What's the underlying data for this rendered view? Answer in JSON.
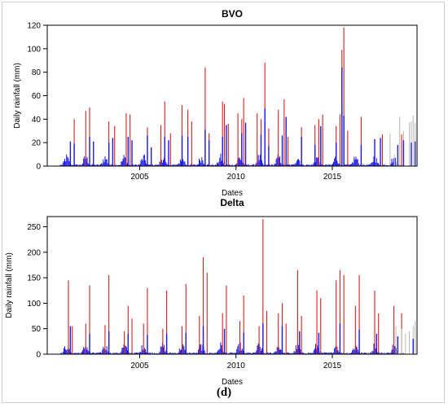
{
  "figure_label": "(d)",
  "chart_data": [
    {
      "type": "bar",
      "title": "BVO",
      "xlabel": "Dates",
      "ylabel": "Daily rainfall (mm)",
      "xlim": [
        2000.2,
        2019.4
      ],
      "ylim": [
        0,
        120
      ],
      "x_ticks": [
        2005,
        2010,
        2015
      ],
      "y_ticks": [
        0,
        20,
        40,
        60,
        80,
        100,
        120
      ],
      "grid": false,
      "series_colors": {
        "red": "#d62020",
        "gray": "#bdbdbd",
        "blue": "#1a1ae6"
      },
      "series": [
        {
          "color": "red",
          "points": [
            [
              2001.6,
              40
            ],
            [
              2002.2,
              47
            ],
            [
              2002.4,
              50
            ],
            [
              2003.4,
              38
            ],
            [
              2003.7,
              34
            ],
            [
              2004.3,
              45
            ],
            [
              2004.5,
              44
            ],
            [
              2005.4,
              33
            ],
            [
              2006.1,
              35
            ],
            [
              2006.3,
              55
            ],
            [
              2006.6,
              28
            ],
            [
              2007.2,
              52
            ],
            [
              2007.5,
              48
            ],
            [
              2007.7,
              38
            ],
            [
              2008.4,
              84
            ],
            [
              2008.6,
              28
            ],
            [
              2009.3,
              55
            ],
            [
              2009.4,
              53
            ],
            [
              2009.6,
              36
            ],
            [
              2010.1,
              45
            ],
            [
              2010.3,
              40
            ],
            [
              2010.4,
              58
            ],
            [
              2011.1,
              45
            ],
            [
              2011.3,
              40
            ],
            [
              2011.5,
              88
            ],
            [
              2011.7,
              32
            ],
            [
              2012.2,
              48
            ],
            [
              2012.5,
              57
            ],
            [
              2012.7,
              25
            ],
            [
              2013.4,
              33
            ],
            [
              2014.1,
              35
            ],
            [
              2014.3,
              40
            ],
            [
              2014.5,
              44
            ],
            [
              2015.2,
              34
            ],
            [
              2015.4,
              44
            ],
            [
              2015.5,
              99
            ],
            [
              2015.6,
              118
            ],
            [
              2015.8,
              30
            ],
            [
              2016.5,
              42
            ],
            [
              2017.6,
              27
            ],
            [
              2018.6,
              27
            ]
          ]
        },
        {
          "color": "gray",
          "points": [
            [
              2018.0,
              28
            ],
            [
              2018.5,
              42
            ],
            [
              2018.7,
              30
            ],
            [
              2019.0,
              37
            ],
            [
              2019.1,
              38
            ],
            [
              2019.2,
              43
            ],
            [
              2019.3,
              37
            ],
            [
              2019.4,
              25
            ]
          ]
        },
        {
          "color": "blue",
          "points": [
            [
              2001.4,
              21
            ],
            [
              2001.6,
              19
            ],
            [
              2002.4,
              25
            ],
            [
              2002.6,
              21
            ],
            [
              2003.4,
              20
            ],
            [
              2003.6,
              24
            ],
            [
              2004.4,
              25
            ],
            [
              2004.6,
              22
            ],
            [
              2005.4,
              26
            ],
            [
              2005.6,
              16
            ],
            [
              2006.3,
              25
            ],
            [
              2006.5,
              22
            ],
            [
              2007.2,
              26
            ],
            [
              2007.5,
              25
            ],
            [
              2008.4,
              31
            ],
            [
              2008.6,
              22
            ],
            [
              2009.3,
              25
            ],
            [
              2009.5,
              35
            ],
            [
              2010.3,
              28
            ],
            [
              2010.5,
              37
            ],
            [
              2011.3,
              27
            ],
            [
              2011.5,
              49
            ],
            [
              2011.7,
              17
            ],
            [
              2012.4,
              26
            ],
            [
              2012.6,
              42
            ],
            [
              2013.4,
              25
            ],
            [
              2014.1,
              18
            ],
            [
              2014.4,
              34
            ],
            [
              2015.2,
              20
            ],
            [
              2015.5,
              84
            ],
            [
              2015.6,
              43
            ],
            [
              2016.5,
              18
            ],
            [
              2017.2,
              23
            ],
            [
              2017.5,
              24
            ],
            [
              2018.4,
              18
            ],
            [
              2018.7,
              22
            ],
            [
              2019.1,
              20
            ],
            [
              2019.3,
              21
            ]
          ]
        }
      ]
    },
    {
      "type": "bar",
      "title": "Delta",
      "xlabel": "Dates",
      "ylabel": "Daily rainfall (mm)",
      "xlim": [
        2000.2,
        2019.4
      ],
      "ylim": [
        0,
        270
      ],
      "x_ticks": [
        2005,
        2010,
        2015
      ],
      "y_ticks": [
        0,
        50,
        100,
        150,
        200,
        250
      ],
      "grid": false,
      "series_colors": {
        "red": "#d62020",
        "gray": "#bdbdbd",
        "blue": "#1a1ae6"
      },
      "series": [
        {
          "color": "red",
          "points": [
            [
              2001.3,
              145
            ],
            [
              2001.5,
              55
            ],
            [
              2002.2,
              60
            ],
            [
              2002.4,
              135
            ],
            [
              2003.2,
              57
            ],
            [
              2003.4,
              155
            ],
            [
              2004.2,
              45
            ],
            [
              2004.4,
              95
            ],
            [
              2004.6,
              70
            ],
            [
              2005.2,
              60
            ],
            [
              2005.4,
              130
            ],
            [
              2006.2,
              50
            ],
            [
              2006.4,
              125
            ],
            [
              2007.2,
              55
            ],
            [
              2007.4,
              138
            ],
            [
              2008.1,
              75
            ],
            [
              2008.3,
              190
            ],
            [
              2008.5,
              160
            ],
            [
              2009.3,
              80
            ],
            [
              2009.5,
              135
            ],
            [
              2010.2,
              65
            ],
            [
              2010.4,
              115
            ],
            [
              2011.2,
              55
            ],
            [
              2011.4,
              265
            ],
            [
              2011.6,
              85
            ],
            [
              2012.2,
              80
            ],
            [
              2012.4,
              100
            ],
            [
              2012.6,
              60
            ],
            [
              2013.2,
              165
            ],
            [
              2013.4,
              75
            ],
            [
              2014.2,
              125
            ],
            [
              2014.4,
              110
            ],
            [
              2015.2,
              145
            ],
            [
              2015.4,
              165
            ],
            [
              2015.6,
              155
            ],
            [
              2016.2,
              95
            ],
            [
              2016.4,
              155
            ],
            [
              2017.2,
              125
            ],
            [
              2017.4,
              80
            ],
            [
              2018.2,
              95
            ],
            [
              2018.6,
              80
            ]
          ]
        },
        {
          "color": "gray",
          "points": [
            [
              2018.3,
              55
            ],
            [
              2018.6,
              50
            ],
            [
              2018.8,
              40
            ],
            [
              2019.0,
              45
            ],
            [
              2019.2,
              55
            ],
            [
              2019.3,
              65
            ],
            [
              2019.4,
              40
            ]
          ]
        },
        {
          "color": "blue",
          "points": [
            [
              2001.4,
              55
            ],
            [
              2002.4,
              40
            ],
            [
              2003.4,
              45
            ],
            [
              2004.4,
              40
            ],
            [
              2005.4,
              38
            ],
            [
              2006.4,
              40
            ],
            [
              2007.4,
              42
            ],
            [
              2008.3,
              55
            ],
            [
              2009.4,
              50
            ],
            [
              2010.4,
              42
            ],
            [
              2011.4,
              60
            ],
            [
              2012.4,
              55
            ],
            [
              2013.3,
              45
            ],
            [
              2014.3,
              42
            ],
            [
              2015.4,
              60
            ],
            [
              2016.4,
              48
            ],
            [
              2017.3,
              40
            ],
            [
              2018.4,
              35
            ],
            [
              2019.2,
              30
            ]
          ]
        }
      ]
    }
  ]
}
